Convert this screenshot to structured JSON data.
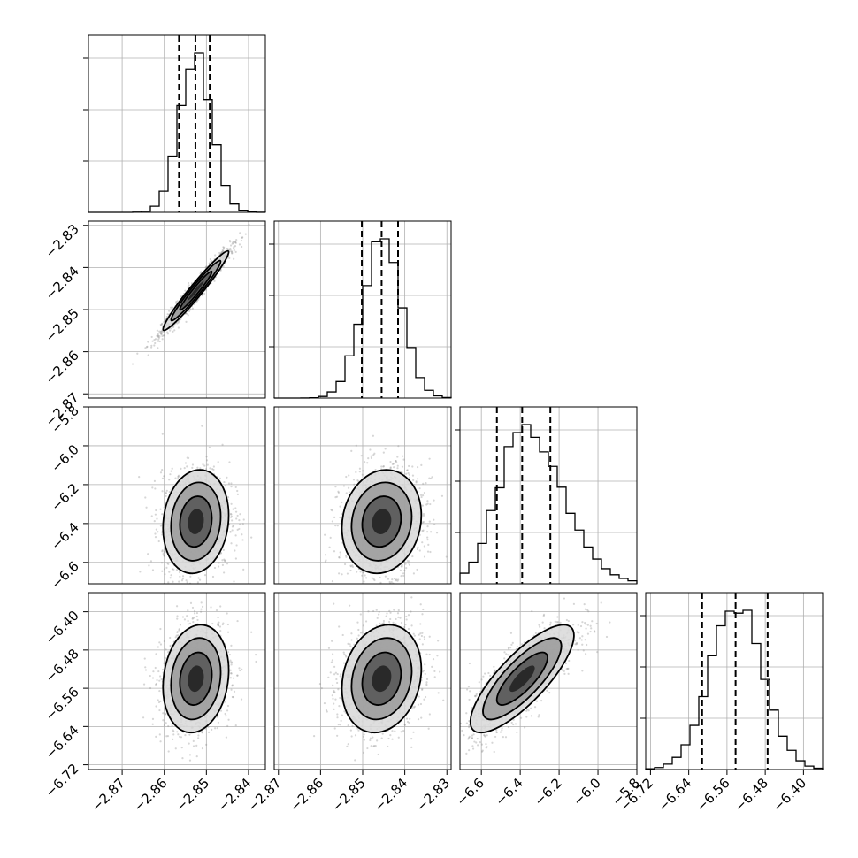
{
  "chart_data": {
    "type": "corner",
    "grid": true,
    "parameters": [
      {
        "range": [
          -2.878,
          -2.836
        ],
        "ticks": [
          -2.87,
          -2.86,
          -2.85,
          -2.84
        ],
        "tick_labels": [
          "−2.87",
          "−2.86",
          "−2.85",
          "−2.84"
        ],
        "mean": -2.8525,
        "sd": 0.0038,
        "quantiles": [
          -2.8565,
          -2.8526,
          -2.8492
        ]
      },
      {
        "range": [
          -2.871,
          -2.829
        ],
        "ticks": [
          -2.87,
          -2.86,
          -2.85,
          -2.84,
          -2.83
        ],
        "tick_labels": [
          "−2.87",
          "−2.86",
          "−2.85",
          "−2.84",
          "−2.83"
        ],
        "mean": -2.8455,
        "sd": 0.0046,
        "quantiles": [
          -2.8502,
          -2.8455,
          -2.8416
        ]
      },
      {
        "range": [
          -6.71,
          -5.8
        ],
        "ticks": [
          -6.6,
          -6.4,
          -6.2,
          -6.0,
          -5.8
        ],
        "tick_labels": [
          "−6.6",
          "−6.4",
          "−6.2",
          "−6.0",
          "−5.8"
        ],
        "mean": -6.39,
        "sd": 0.13,
        "quantiles": [
          -6.52,
          -6.39,
          -6.245
        ]
      },
      {
        "range": [
          -6.73,
          -6.36
        ],
        "ticks": [
          -6.72,
          -6.64,
          -6.56,
          -6.48,
          -6.4
        ],
        "tick_labels": [
          "−6.72",
          "−6.64",
          "−6.56",
          "−6.48",
          "−6.40"
        ],
        "mean": -6.54,
        "sd": 0.055,
        "quantiles": [
          -6.612,
          -6.542,
          -6.475
        ]
      }
    ],
    "correlations": {
      "1-0": 0.97,
      "2-0": 0.12,
      "2-1": 0.12,
      "3-0": 0.15,
      "3-1": 0.18,
      "3-2": 0.8
    },
    "histogram_bins": 20,
    "scatter_points_per_panel": 1400
  }
}
